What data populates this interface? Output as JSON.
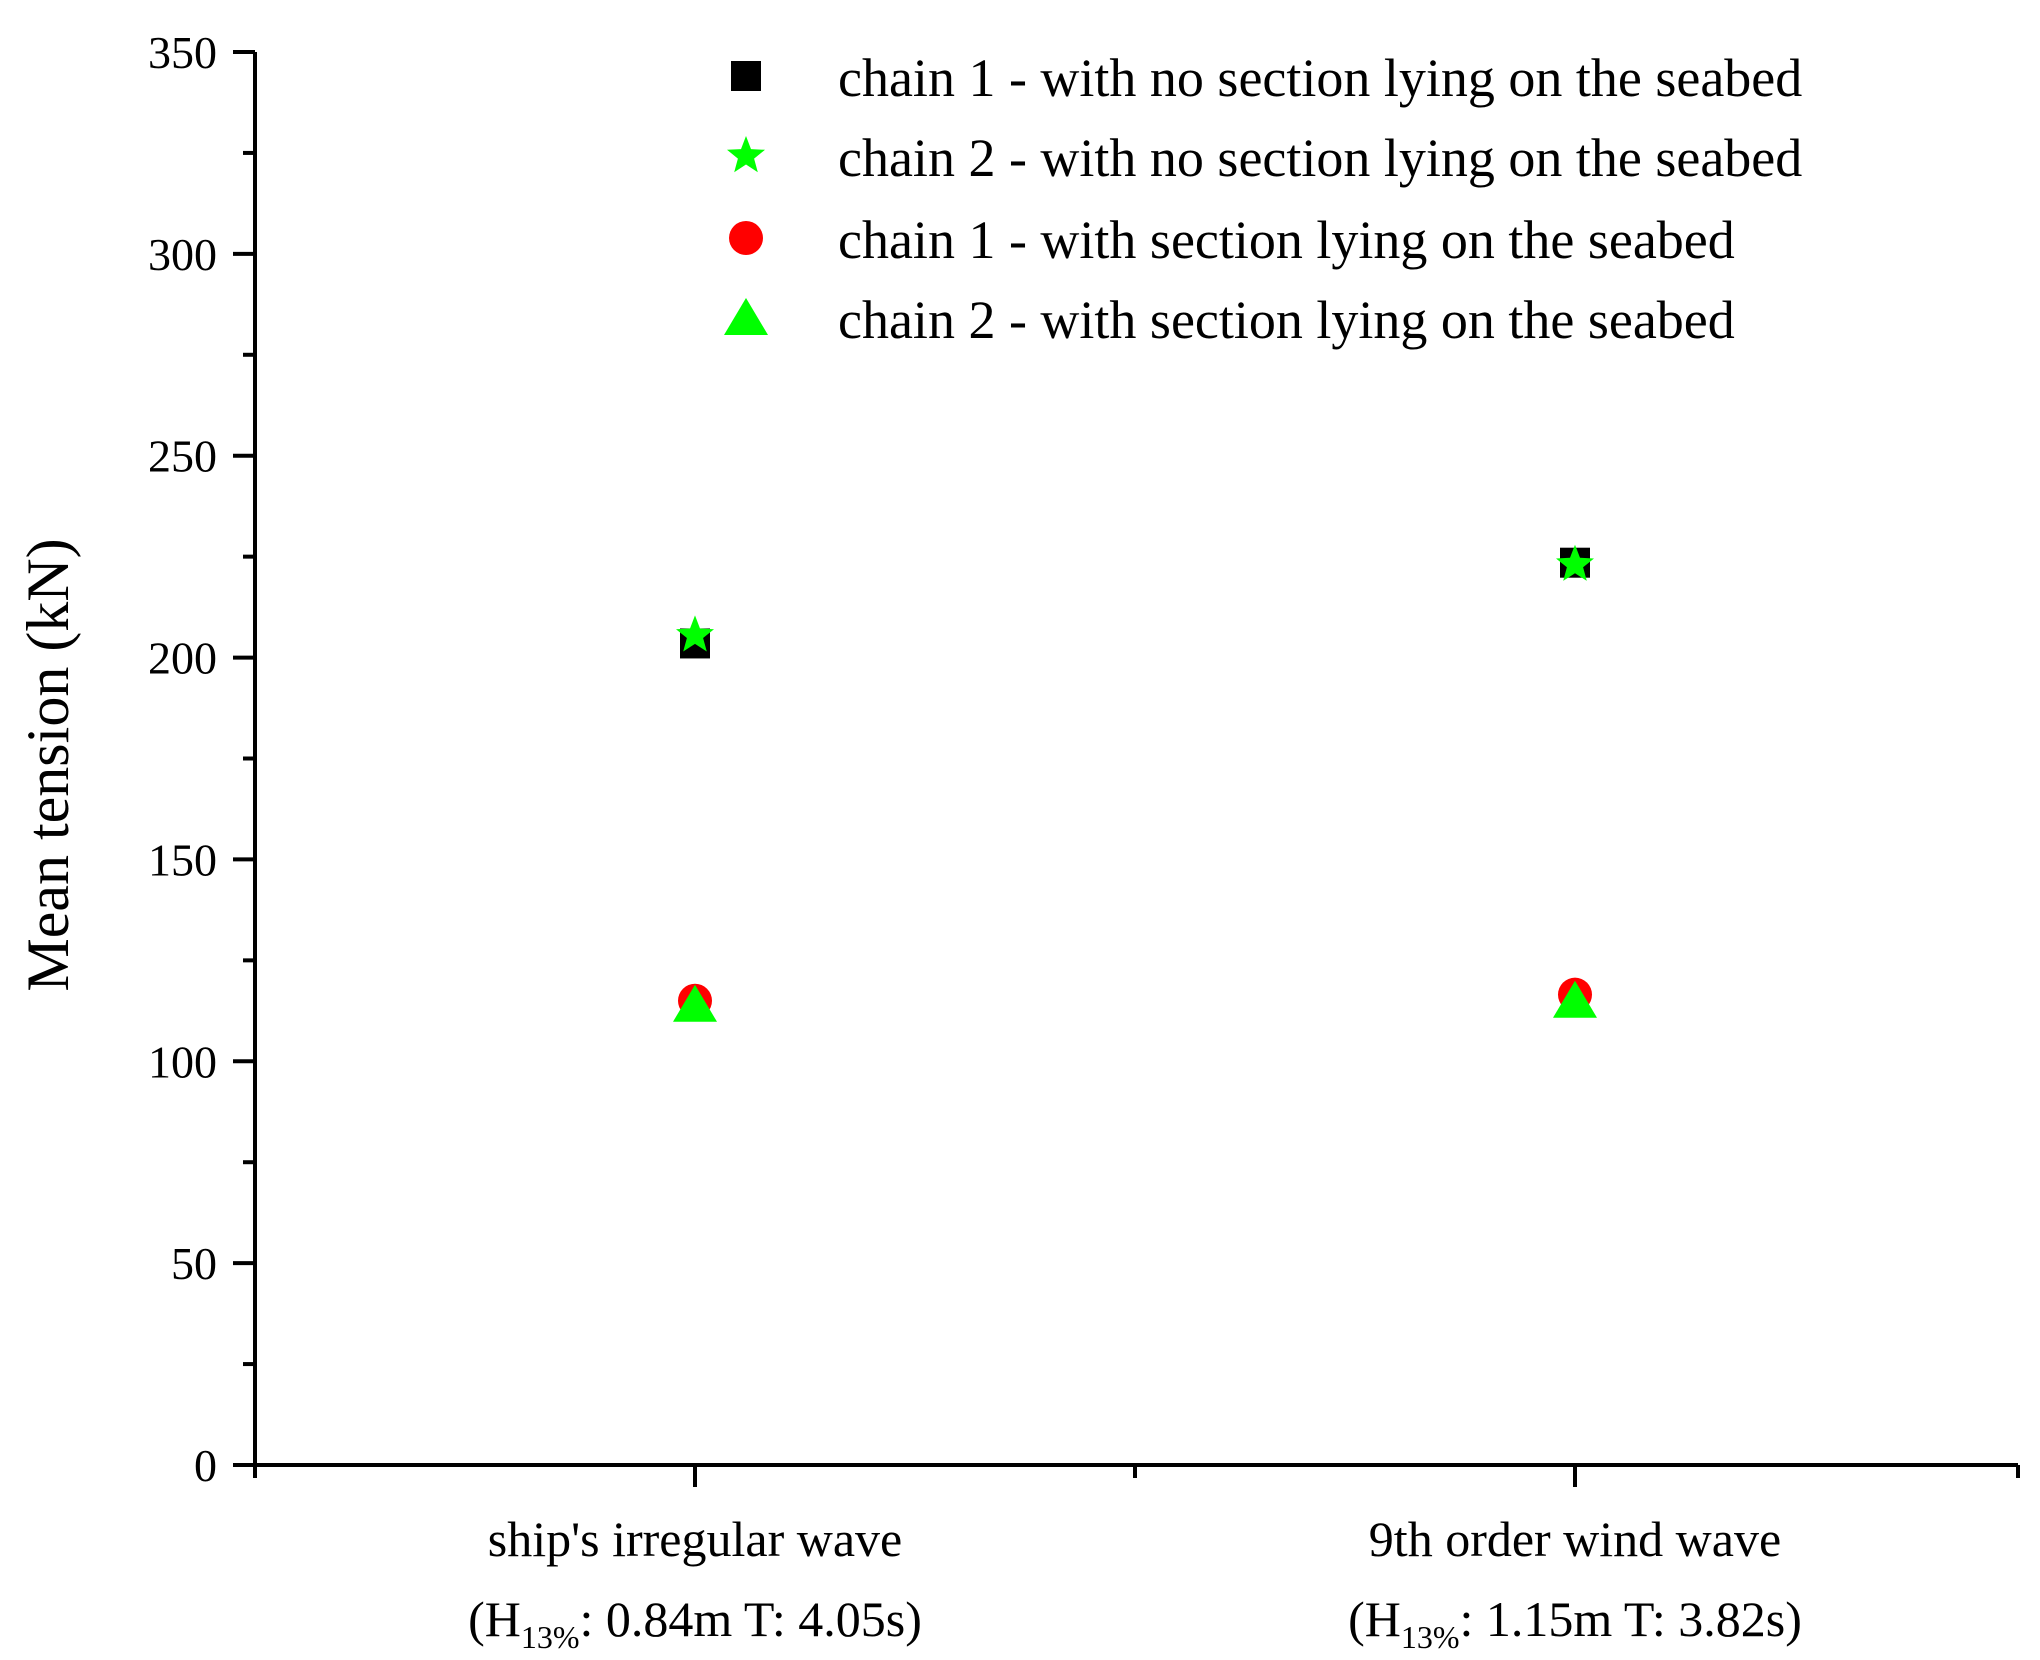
{
  "chart_data": {
    "type": "scatter",
    "ylabel": "Mean tension (kN)",
    "ylim": [
      0,
      350
    ],
    "yticks": [
      0,
      50,
      100,
      150,
      200,
      250,
      300,
      350
    ],
    "grid": false,
    "legend_position": "top-right",
    "categories": [
      {
        "line1": "ship's irregular wave",
        "line2_open": "(H",
        "line2_sub": "13%",
        "line2_rest": ": 0.84m  T: 4.05s)"
      },
      {
        "line1": "9th order wind wave",
        "line2_open": "(H",
        "line2_sub": "13%",
        "line2_rest": ": 1.15m  T: 3.82s)"
      }
    ],
    "series": [
      {
        "name": "chain 1 - with no section lying on the seabed",
        "marker": "square",
        "color": "#000000",
        "values": [
          203.5,
          223.5
        ]
      },
      {
        "name": "chain 2 - with no section lying on the seabed",
        "marker": "star",
        "color": "#00ff00",
        "values": [
          205.5,
          223
        ]
      },
      {
        "name": "chain 1 - with section lying on the seabed",
        "marker": "circle",
        "color": "#ff0000",
        "values": [
          115,
          116.5
        ]
      },
      {
        "name": "chain 2 - with section lying on the seabed",
        "marker": "triangle",
        "color": "#00ff00",
        "values": [
          114,
          115
        ]
      }
    ]
  }
}
